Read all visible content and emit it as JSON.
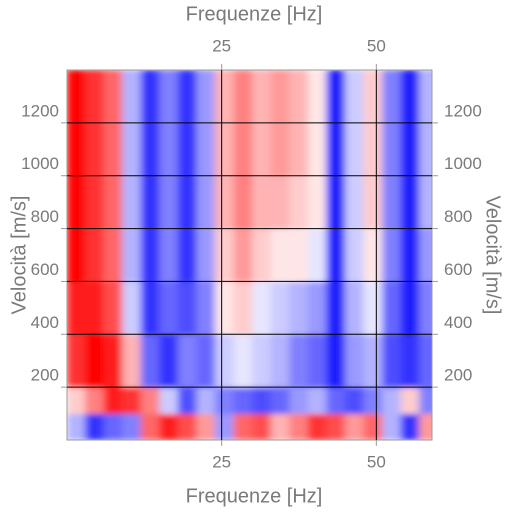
{
  "chart_data": {
    "type": "heatmap",
    "x_label": "Frequenze [Hz]",
    "y_label": "Velocità [m/s]",
    "xlim": [
      0,
      59
    ],
    "ylim": [
      0,
      1400
    ],
    "xticks": [
      25,
      50
    ],
    "yticks": [
      200,
      400,
      600,
      800,
      1000,
      1200
    ],
    "grid": true,
    "xbins": [
      0,
      3,
      6,
      9,
      12,
      15,
      18,
      21,
      24,
      27,
      30,
      33,
      36,
      39,
      42,
      45,
      48,
      51,
      54,
      57,
      60
    ],
    "ybins": [
      0,
      100,
      200,
      400,
      600,
      800,
      1000,
      1200,
      1400
    ],
    "zlim": [
      -1,
      1
    ],
    "colors": [
      "#0000ff",
      "#ffffff",
      "#ff0000"
    ],
    "z": [
      [
        -0.3,
        -0.8,
        -0.6,
        -0.5,
        0.6,
        0.9,
        0.7,
        0.4,
        -0.4,
        0.6,
        0.7,
        0.3,
        0.5,
        0.8,
        0.7,
        0.4,
        0.6,
        -0.3,
        -0.8,
        0.4
      ],
      [
        0.2,
        0.5,
        0.9,
        0.8,
        0.5,
        -0.2,
        -0.7,
        -0.3,
        -0.5,
        -0.6,
        -0.7,
        -0.6,
        -0.4,
        -0.3,
        -0.6,
        -0.7,
        -0.5,
        -0.3,
        0.2,
        -0.5
      ],
      [
        0.8,
        1,
        0.9,
        0.3,
        -0.6,
        -0.8,
        -0.5,
        -0.6,
        -0.2,
        -0.1,
        -0.2,
        -0.3,
        -0.5,
        -0.6,
        -0.9,
        -0.4,
        -0.3,
        -0.7,
        -0.8,
        -0.6
      ],
      [
        0.9,
        0.9,
        0.7,
        -0.2,
        -0.8,
        -0.6,
        -0.7,
        -0.5,
        0.1,
        0.2,
        -0.1,
        -0.2,
        -0.3,
        -0.4,
        -0.9,
        -0.3,
        -0.1,
        -0.6,
        -0.9,
        -0.5
      ],
      [
        1,
        0.8,
        0.6,
        -0.3,
        -0.8,
        -0.5,
        -0.8,
        -0.4,
        0.2,
        0.4,
        0.2,
        0.1,
        0.1,
        -0.1,
        -0.9,
        -0.2,
        0.1,
        -0.5,
        -0.9,
        -0.4
      ],
      [
        1,
        0.8,
        0.6,
        -0.3,
        -0.8,
        -0.5,
        -0.8,
        -0.4,
        0.3,
        0.5,
        0.3,
        0.3,
        0.2,
        0.1,
        -0.9,
        -0.2,
        0.2,
        -0.5,
        -0.9,
        -0.3
      ],
      [
        1,
        0.8,
        0.6,
        -0.3,
        -0.8,
        -0.5,
        -0.8,
        -0.4,
        0.3,
        0.5,
        0.3,
        0.4,
        0.3,
        0.1,
        -0.9,
        -0.2,
        0.2,
        -0.5,
        -0.9,
        -0.3
      ],
      [
        1,
        0.8,
        0.6,
        -0.3,
        -0.8,
        -0.5,
        -0.8,
        -0.4,
        0.3,
        0.5,
        0.3,
        0.4,
        0.3,
        0.1,
        -0.9,
        -0.2,
        0.2,
        -0.5,
        -0.9,
        -0.3
      ]
    ]
  }
}
